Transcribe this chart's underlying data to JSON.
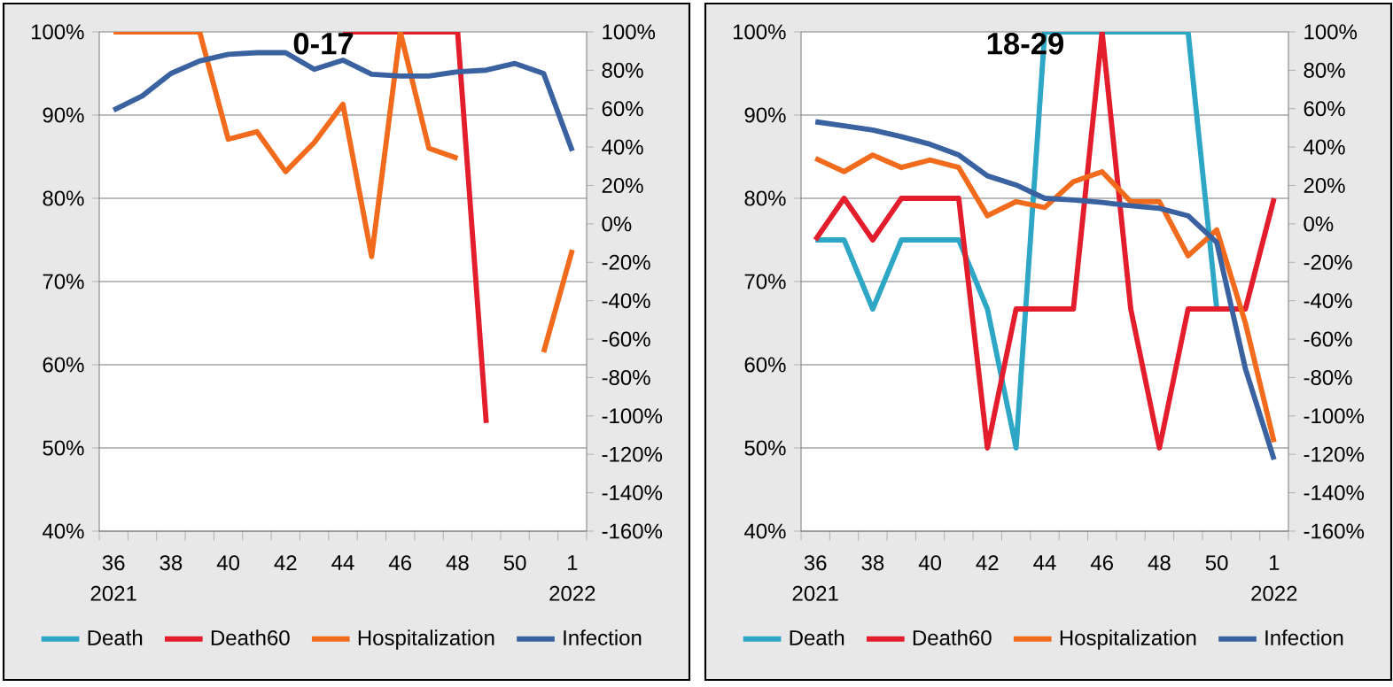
{
  "chart_data": [
    {
      "type": "line",
      "title": "0-17",
      "categories": [
        "36",
        null,
        "38",
        null,
        "40",
        null,
        "42",
        null,
        "44",
        null,
        "46",
        null,
        "48",
        null,
        "50",
        null,
        "1"
      ],
      "series": [
        {
          "name": "Death",
          "color": "#2ea6c6",
          "values": [
            null,
            null,
            null,
            null,
            null,
            null,
            null,
            null,
            null,
            null,
            null,
            null,
            null,
            null,
            null,
            null,
            null
          ]
        },
        {
          "name": "Death60",
          "color": "#e31d2b",
          "values": [
            null,
            null,
            null,
            null,
            null,
            null,
            null,
            null,
            100,
            100,
            100,
            100,
            100,
            53,
            null,
            null,
            null
          ]
        },
        {
          "name": "Hospitalization",
          "color": "#f26b1d",
          "values": [
            100,
            100,
            100,
            100,
            87.1,
            88.0,
            83.2,
            86.7,
            91.3,
            73.0,
            100,
            86.0,
            84.8,
            null,
            null,
            61.5,
            73.8
          ]
        },
        {
          "name": "Infection",
          "color": "#3a62a0",
          "values": [
            90.6,
            92.3,
            95.0,
            96.5,
            97.3,
            97.5,
            97.5,
            95.5,
            96.6,
            94.9,
            94.7,
            94.7,
            95.2,
            95.4,
            96.2,
            95.0,
            85.7
          ]
        }
      ],
      "ylim": [
        40,
        100
      ],
      "yticks": [
        {
          "value": 40,
          "label": "40%"
        },
        {
          "value": 50,
          "label": "50%"
        },
        {
          "value": 60,
          "label": "60%"
        },
        {
          "value": 70,
          "label": "70%"
        },
        {
          "value": 80,
          "label": "80%"
        },
        {
          "value": 90,
          "label": "90%"
        },
        {
          "value": 100,
          "label": "100%"
        }
      ],
      "y2lim": [
        -160,
        100
      ],
      "y2ticks": [
        {
          "value": -160,
          "label": "-160%"
        },
        {
          "value": -140,
          "label": "-140%"
        },
        {
          "value": -120,
          "label": "-120%"
        },
        {
          "value": -100,
          "label": "-100%"
        },
        {
          "value": -80,
          "label": "-80%"
        },
        {
          "value": -60,
          "label": "-60%"
        },
        {
          "value": -40,
          "label": "-40%"
        },
        {
          "value": -20,
          "label": "-20%"
        },
        {
          "value": 0,
          "label": "0%"
        },
        {
          "value": 20,
          "label": "20%"
        },
        {
          "value": 40,
          "label": "40%"
        },
        {
          "value": 60,
          "label": "60%"
        },
        {
          "value": 80,
          "label": "80%"
        },
        {
          "value": 100,
          "label": "100%"
        }
      ],
      "annotations": [
        "2021",
        "2022"
      ],
      "grid": "y",
      "legend": "bottom"
    },
    {
      "type": "line",
      "title": "18-29",
      "categories": [
        "36",
        null,
        "38",
        null,
        "40",
        null,
        "42",
        null,
        "44",
        null,
        "46",
        null,
        "48",
        null,
        "50",
        null,
        "1"
      ],
      "series": [
        {
          "name": "Death",
          "color": "#2ea6c6",
          "values": [
            75,
            75,
            66.7,
            75,
            75,
            75,
            66.7,
            50,
            100,
            100,
            100,
            100,
            100,
            100,
            66.7,
            null,
            null
          ]
        },
        {
          "name": "Death60",
          "color": "#e31d2b",
          "values": [
            75,
            80,
            75,
            80,
            80,
            80,
            50,
            66.7,
            66.7,
            66.7,
            100,
            66.7,
            50,
            66.7,
            66.7,
            66.7,
            80
          ]
        },
        {
          "name": "Hospitalization",
          "color": "#f26b1d",
          "values": [
            84.8,
            83.2,
            85.2,
            83.7,
            84.6,
            83.7,
            77.9,
            79.6,
            78.9,
            82.0,
            83.2,
            79.6,
            79.6,
            73.1,
            76.2,
            65,
            50.7
          ]
        },
        {
          "name": "Infection",
          "color": "#3a62a0",
          "values": [
            89.2,
            88.7,
            88.2,
            87.4,
            86.5,
            85.2,
            82.7,
            81.6,
            80.0,
            79.8,
            79.5,
            79.1,
            78.8,
            77.9,
            74.7,
            59.5,
            48.6
          ]
        }
      ],
      "ylim": [
        40,
        100
      ],
      "yticks": [
        {
          "value": 40,
          "label": "40%"
        },
        {
          "value": 50,
          "label": "50%"
        },
        {
          "value": 60,
          "label": "60%"
        },
        {
          "value": 70,
          "label": "70%"
        },
        {
          "value": 80,
          "label": "80%"
        },
        {
          "value": 90,
          "label": "90%"
        },
        {
          "value": 100,
          "label": "100%"
        }
      ],
      "y2lim": [
        -160,
        100
      ],
      "y2ticks": [
        {
          "value": -160,
          "label": "-160%"
        },
        {
          "value": -140,
          "label": "-140%"
        },
        {
          "value": -120,
          "label": "-120%"
        },
        {
          "value": -100,
          "label": "-100%"
        },
        {
          "value": -80,
          "label": "-80%"
        },
        {
          "value": -60,
          "label": "-60%"
        },
        {
          "value": -40,
          "label": "-40%"
        },
        {
          "value": -20,
          "label": "-20%"
        },
        {
          "value": 0,
          "label": "0%"
        },
        {
          "value": 20,
          "label": "20%"
        },
        {
          "value": 40,
          "label": "40%"
        },
        {
          "value": 60,
          "label": "60%"
        },
        {
          "value": 80,
          "label": "80%"
        },
        {
          "value": 100,
          "label": "100%"
        }
      ],
      "annotations": [
        "2021",
        "2022"
      ],
      "grid": "y",
      "legend": "bottom"
    }
  ]
}
